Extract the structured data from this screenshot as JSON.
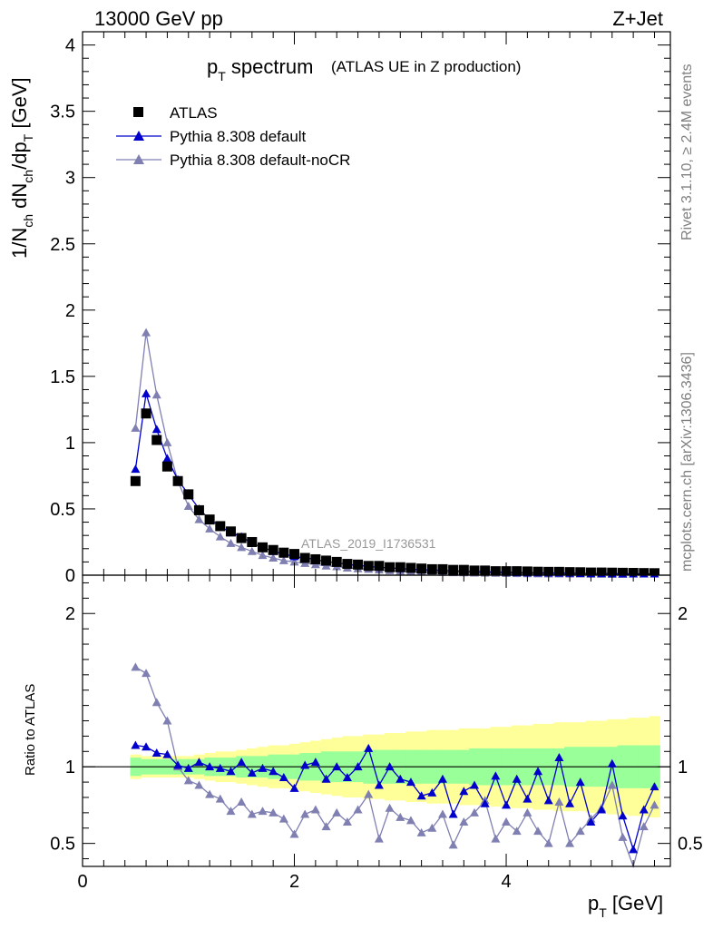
{
  "header": {
    "energy": "13000 GeV pp",
    "process": "Z+Jet"
  },
  "side_labels": {
    "rivet": "Rivet 3.1.10, ≥ 2.4M events",
    "mcplots": "mcplots.cern.ch [arXiv:1306.3436]"
  },
  "watermark": "ATLAS_2019_I1736531",
  "colors": {
    "data": "#000000",
    "default": "#0000cc",
    "nocr": "#7f7fb2",
    "band_inner": "#99ff99",
    "band_outer": "#ffff99"
  },
  "chart_data": [
    {
      "type": "scatter",
      "title_main": "p",
      "title_sub": "T",
      "title_rest": " spectrum",
      "subtitle": "(ATLAS UE in Z production)",
      "ylabel": "1/N_ch dN_ch/dp_T [GeV]",
      "xlim": [
        0,
        5.55
      ],
      "ylim": [
        0,
        4.1
      ],
      "yticks": [
        "0",
        "0.5",
        "1",
        "1.5",
        "2",
        "2.5",
        "3",
        "3.5",
        "4"
      ],
      "legend": {
        "placement": "top-left",
        "entries": [
          "ATLAS",
          "Pythia 8.308 default",
          "Pythia 8.308 default-noCR"
        ]
      },
      "x": [
        0.5,
        0.6,
        0.7,
        0.8,
        0.9,
        1.0,
        1.1,
        1.2,
        1.3,
        1.4,
        1.5,
        1.6,
        1.7,
        1.8,
        1.9,
        2.0,
        2.1,
        2.2,
        2.3,
        2.4,
        2.5,
        2.6,
        2.7,
        2.8,
        2.9,
        3.0,
        3.1,
        3.2,
        3.3,
        3.4,
        3.5,
        3.6,
        3.7,
        3.8,
        3.9,
        4.0,
        4.1,
        4.2,
        4.3,
        4.4,
        4.5,
        4.6,
        4.7,
        4.8,
        4.9,
        5.0,
        5.1,
        5.2,
        5.3,
        5.4
      ],
      "series": [
        {
          "name": "ATLAS",
          "values": [
            0.71,
            1.22,
            1.02,
            0.82,
            0.71,
            0.61,
            0.49,
            0.42,
            0.37,
            0.33,
            0.28,
            0.25,
            0.21,
            0.19,
            0.17,
            0.16,
            0.13,
            0.12,
            0.11,
            0.1,
            0.085,
            0.08,
            0.07,
            0.07,
            0.06,
            0.06,
            0.055,
            0.05,
            0.045,
            0.045,
            0.04,
            0.04,
            0.035,
            0.035,
            0.03,
            0.03,
            0.03,
            0.028,
            0.026,
            0.025,
            0.025,
            0.023,
            0.022,
            0.02,
            0.02,
            0.019,
            0.018,
            0.017,
            0.016,
            0.015
          ]
        },
        {
          "name": "Pythia 8.308 default",
          "values": [
            0.8,
            1.37,
            1.1,
            0.88,
            0.72,
            0.61,
            0.5,
            0.42,
            0.37,
            0.32,
            0.29,
            0.24,
            0.21,
            0.18,
            0.16,
            0.14,
            0.13,
            0.12,
            0.1,
            0.095,
            0.08,
            0.075,
            0.065,
            0.06,
            0.055,
            0.05,
            0.045,
            0.04,
            0.04,
            0.035,
            0.033,
            0.03,
            0.028,
            0.026,
            0.024,
            0.022,
            0.02,
            0.019,
            0.018,
            0.017,
            0.016,
            0.015,
            0.014,
            0.013,
            0.013,
            0.012,
            0.011,
            0.01,
            0.01,
            0.01
          ]
        },
        {
          "name": "Pythia 8.308 default-noCR",
          "values": [
            1.11,
            1.83,
            1.36,
            1.0,
            0.71,
            0.52,
            0.42,
            0.35,
            0.29,
            0.24,
            0.21,
            0.18,
            0.15,
            0.13,
            0.11,
            0.1,
            0.09,
            0.08,
            0.07,
            0.065,
            0.055,
            0.05,
            0.045,
            0.04,
            0.035,
            0.032,
            0.03,
            0.027,
            0.025,
            0.022,
            0.02,
            0.019,
            0.017,
            0.016,
            0.015,
            0.014,
            0.013,
            0.012,
            0.011,
            0.01,
            0.01,
            0.009,
            0.009,
            0.008,
            0.008,
            0.007,
            0.007,
            0.006,
            0.006,
            0.006
          ]
        }
      ]
    },
    {
      "type": "line",
      "ylabel": "Ratio to ATLAS",
      "xlabel_main": "p",
      "xlabel_sub": "T",
      "xlabel_rest": " [GeV]",
      "xlim": [
        0,
        5.55
      ],
      "ylim": [
        0.35,
        2.25
      ],
      "xticks": [
        "0",
        "2",
        "4"
      ],
      "yticks": [
        "0.5",
        "1",
        "2"
      ],
      "x": [
        0.5,
        0.6,
        0.7,
        0.8,
        0.9,
        1.0,
        1.1,
        1.2,
        1.3,
        1.4,
        1.5,
        1.6,
        1.7,
        1.8,
        1.9,
        2.0,
        2.1,
        2.2,
        2.3,
        2.4,
        2.5,
        2.6,
        2.7,
        2.8,
        2.9,
        3.0,
        3.1,
        3.2,
        3.3,
        3.4,
        3.5,
        3.6,
        3.7,
        3.8,
        3.9,
        4.0,
        4.1,
        4.2,
        4.3,
        4.4,
        4.5,
        4.6,
        4.7,
        4.8,
        4.9,
        5.0,
        5.1,
        5.2,
        5.3,
        5.4
      ],
      "band_inner": [
        0.06,
        0.05,
        0.05,
        0.05,
        0.05,
        0.05,
        0.05,
        0.06,
        0.06,
        0.06,
        0.07,
        0.07,
        0.07,
        0.08,
        0.08,
        0.08,
        0.09,
        0.09,
        0.1,
        0.1,
        0.1,
        0.1,
        0.11,
        0.11,
        0.11,
        0.11,
        0.11,
        0.11,
        0.11,
        0.11,
        0.11,
        0.11,
        0.12,
        0.12,
        0.12,
        0.12,
        0.12,
        0.12,
        0.12,
        0.12,
        0.12,
        0.13,
        0.13,
        0.13,
        0.13,
        0.13,
        0.14,
        0.14,
        0.14,
        0.14
      ],
      "band_outer": [
        0.08,
        0.07,
        0.07,
        0.07,
        0.07,
        0.07,
        0.08,
        0.09,
        0.1,
        0.1,
        0.11,
        0.12,
        0.13,
        0.14,
        0.14,
        0.15,
        0.16,
        0.17,
        0.18,
        0.19,
        0.2,
        0.2,
        0.21,
        0.21,
        0.22,
        0.22,
        0.23,
        0.23,
        0.24,
        0.24,
        0.24,
        0.25,
        0.25,
        0.25,
        0.26,
        0.26,
        0.27,
        0.27,
        0.28,
        0.28,
        0.29,
        0.29,
        0.29,
        0.3,
        0.3,
        0.31,
        0.31,
        0.32,
        0.32,
        0.33
      ],
      "series": [
        {
          "name": "Pythia 8.308 default",
          "values": [
            1.14,
            1.13,
            1.09,
            1.08,
            1.01,
            0.99,
            1.03,
            1.0,
            0.99,
            0.97,
            1.03,
            0.96,
            0.99,
            0.97,
            0.93,
            0.86,
            1.01,
            1.03,
            0.92,
            1.0,
            0.93,
            1.0,
            1.12,
            0.88,
            1.0,
            0.92,
            0.9,
            0.81,
            0.83,
            0.92,
            0.69,
            0.84,
            0.88,
            0.76,
            0.94,
            0.75,
            0.92,
            0.79,
            0.97,
            0.78,
            1.06,
            0.76,
            0.9,
            0.64,
            0.72,
            1.02,
            0.68,
            0.46,
            0.72,
            0.87
          ]
        },
        {
          "name": "Pythia 8.308 default-noCR",
          "values": [
            1.65,
            1.61,
            1.42,
            1.3,
            1.0,
            0.91,
            0.88,
            0.82,
            0.79,
            0.71,
            0.77,
            0.69,
            0.71,
            0.7,
            0.66,
            0.56,
            0.69,
            0.72,
            0.61,
            0.7,
            0.64,
            0.72,
            0.82,
            0.53,
            0.73,
            0.67,
            0.65,
            0.57,
            0.6,
            0.69,
            0.49,
            0.64,
            0.7,
            0.78,
            0.53,
            0.64,
            0.58,
            0.7,
            0.58,
            0.5,
            0.77,
            0.5,
            0.58,
            0.66,
            0.73,
            0.88,
            0.54,
            0.35,
            0.61,
            0.75
          ]
        }
      ]
    }
  ]
}
